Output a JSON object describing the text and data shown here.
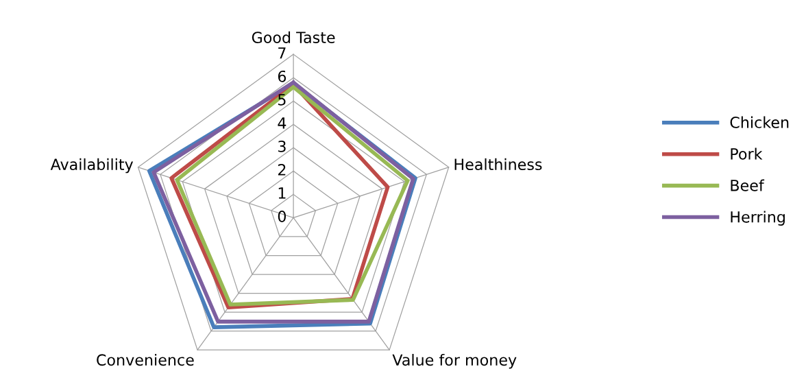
{
  "chart_data": {
    "type": "radar",
    "categories": [
      "Good Taste",
      "Healthiness",
      "Value for money",
      "Convenience",
      "Availability"
    ],
    "ylim": [
      0,
      7
    ],
    "yticks": [
      0,
      1,
      2,
      3,
      4,
      5,
      6,
      7
    ],
    "grid": true,
    "legend": "right",
    "marker": "none",
    "series": [
      {
        "name": "Chicken",
        "color": "#4a7ebb",
        "values": [
          5.75,
          5.5,
          5.6,
          5.8,
          6.5
        ]
      },
      {
        "name": "Pork",
        "color": "#be4b48",
        "values": [
          5.7,
          4.25,
          4.3,
          4.75,
          5.5
        ]
      },
      {
        "name": "Beef",
        "color": "#98b954",
        "values": [
          5.6,
          5.15,
          4.35,
          4.6,
          5.25
        ]
      },
      {
        "name": "Herring",
        "color": "#7d60a0",
        "values": [
          5.8,
          5.4,
          5.5,
          5.5,
          6.3
        ]
      }
    ]
  }
}
